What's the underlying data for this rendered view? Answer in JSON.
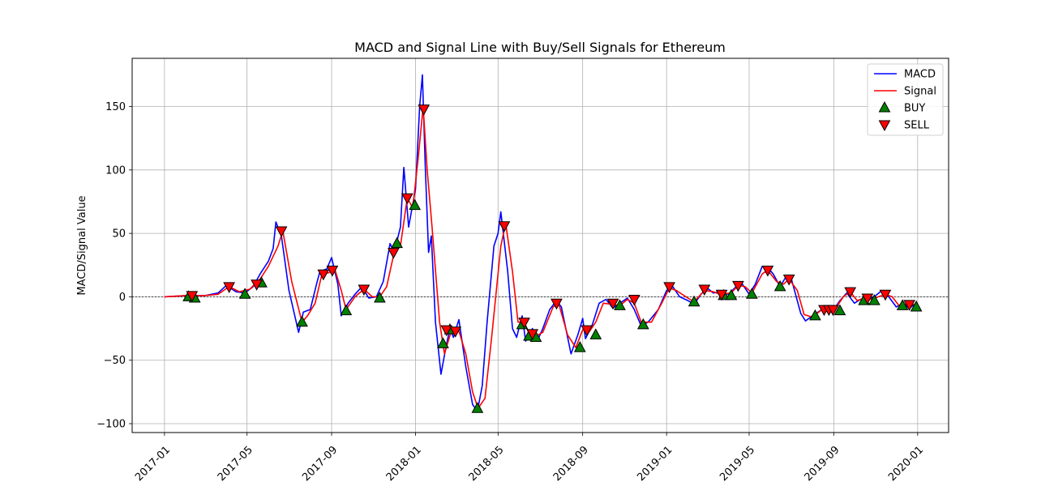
{
  "chart_data": {
    "type": "line",
    "title": "MACD and Signal Line with Buy/Sell Signals for Ethereum",
    "xlabel": "",
    "ylabel": "MACD/Signal Value",
    "xlim": [
      "2016-11-15",
      "2020-02-15"
    ],
    "ylim": [
      -107,
      188
    ],
    "x_ticks": [
      "2017-01",
      "2017-05",
      "2017-09",
      "2018-01",
      "2018-05",
      "2018-09",
      "2019-01",
      "2019-05",
      "2019-09",
      "2020-01"
    ],
    "y_ticks": [
      -100,
      -50,
      0,
      50,
      100,
      150
    ],
    "grid": true,
    "zero_line": true,
    "legend": {
      "position": "top-right",
      "entries": [
        "MACD",
        "Signal",
        "BUY",
        "SELL"
      ]
    },
    "colors": {
      "macd": "#0000ff",
      "signal": "#ff0000",
      "buy": "#008000",
      "sell": "#ff0000"
    },
    "series": [
      {
        "name": "MACD",
        "points": [
          [
            "2017-01-01",
            0
          ],
          [
            "2017-02-01",
            1
          ],
          [
            "2017-03-01",
            1
          ],
          [
            "2017-03-20",
            3
          ],
          [
            "2017-04-01",
            9
          ],
          [
            "2017-04-15",
            4
          ],
          [
            "2017-04-28",
            3
          ],
          [
            "2017-05-10",
            8
          ],
          [
            "2017-05-20",
            18
          ],
          [
            "2017-06-01",
            28
          ],
          [
            "2017-06-08",
            38
          ],
          [
            "2017-06-12",
            59
          ],
          [
            "2017-06-20",
            48
          ],
          [
            "2017-07-01",
            5
          ],
          [
            "2017-07-15",
            -28
          ],
          [
            "2017-07-22",
            -12
          ],
          [
            "2017-08-01",
            -10
          ],
          [
            "2017-08-10",
            10
          ],
          [
            "2017-08-15",
            20
          ],
          [
            "2017-08-25",
            22
          ],
          [
            "2017-09-01",
            31
          ],
          [
            "2017-09-10",
            10
          ],
          [
            "2017-09-15",
            -15
          ],
          [
            "2017-09-25",
            -5
          ],
          [
            "2017-10-05",
            2
          ],
          [
            "2017-10-15",
            8
          ],
          [
            "2017-10-25",
            -1
          ],
          [
            "2017-11-05",
            0
          ],
          [
            "2017-11-15",
            12
          ],
          [
            "2017-11-25",
            42
          ],
          [
            "2017-12-01",
            35
          ],
          [
            "2017-12-10",
            55
          ],
          [
            "2017-12-15",
            102
          ],
          [
            "2017-12-22",
            55
          ],
          [
            "2018-01-01",
            85
          ],
          [
            "2018-01-07",
            150
          ],
          [
            "2018-01-11",
            175
          ],
          [
            "2018-01-15",
            105
          ],
          [
            "2018-01-20",
            35
          ],
          [
            "2018-01-24",
            48
          ],
          [
            "2018-01-30",
            -20
          ],
          [
            "2018-02-07",
            -61
          ],
          [
            "2018-02-14",
            -40
          ],
          [
            "2018-02-20",
            -25
          ],
          [
            "2018-02-25",
            -32
          ],
          [
            "2018-03-05",
            -18
          ],
          [
            "2018-03-15",
            -55
          ],
          [
            "2018-03-25",
            -85
          ],
          [
            "2018-04-01",
            -90
          ],
          [
            "2018-04-08",
            -70
          ],
          [
            "2018-04-15",
            -20
          ],
          [
            "2018-04-25",
            40
          ],
          [
            "2018-05-01",
            50
          ],
          [
            "2018-05-05",
            67
          ],
          [
            "2018-05-15",
            20
          ],
          [
            "2018-05-22",
            -25
          ],
          [
            "2018-05-28",
            -32
          ],
          [
            "2018-06-05",
            -15
          ],
          [
            "2018-06-10",
            -35
          ],
          [
            "2018-06-20",
            -25
          ],
          [
            "2018-06-27",
            -35
          ],
          [
            "2018-07-05",
            -25
          ],
          [
            "2018-07-15",
            -10
          ],
          [
            "2018-07-25",
            -3
          ],
          [
            "2018-08-01",
            -8
          ],
          [
            "2018-08-15",
            -45
          ],
          [
            "2018-08-25",
            -30
          ],
          [
            "2018-09-01",
            -17
          ],
          [
            "2018-09-05",
            -33
          ],
          [
            "2018-09-15",
            -22
          ],
          [
            "2018-09-25",
            -5
          ],
          [
            "2018-10-05",
            -2
          ],
          [
            "2018-10-15",
            -9
          ],
          [
            "2018-10-25",
            -5
          ],
          [
            "2018-11-05",
            -1
          ],
          [
            "2018-11-15",
            -10
          ],
          [
            "2018-11-25",
            -23
          ],
          [
            "2018-12-05",
            -20
          ],
          [
            "2018-12-20",
            -10
          ],
          [
            "2019-01-01",
            5
          ],
          [
            "2019-01-10",
            8
          ],
          [
            "2019-01-20",
            0
          ],
          [
            "2019-02-01",
            -3
          ],
          [
            "2019-02-10",
            -6
          ],
          [
            "2019-02-20",
            2
          ],
          [
            "2019-03-01",
            7
          ],
          [
            "2019-03-10",
            3
          ],
          [
            "2019-03-20",
            4
          ],
          [
            "2019-04-01",
            2
          ],
          [
            "2019-04-10",
            7
          ],
          [
            "2019-04-20",
            11
          ],
          [
            "2019-05-01",
            2
          ],
          [
            "2019-05-10",
            10
          ],
          [
            "2019-05-20",
            24
          ],
          [
            "2019-05-28",
            23
          ],
          [
            "2019-06-05",
            18
          ],
          [
            "2019-06-15",
            8
          ],
          [
            "2019-06-25",
            17
          ],
          [
            "2019-07-01",
            15
          ],
          [
            "2019-07-15",
            -13
          ],
          [
            "2019-07-22",
            -19
          ],
          [
            "2019-08-01",
            -15
          ],
          [
            "2019-08-15",
            -10
          ],
          [
            "2019-08-25",
            -11
          ],
          [
            "2019-09-01",
            -10
          ],
          [
            "2019-09-10",
            -3
          ],
          [
            "2019-09-20",
            3
          ],
          [
            "2019-10-01",
            -5
          ],
          [
            "2019-10-10",
            -2
          ],
          [
            "2019-10-20",
            -3
          ],
          [
            "2019-11-01",
            1
          ],
          [
            "2019-11-10",
            5
          ],
          [
            "2019-11-20",
            0
          ],
          [
            "2019-12-01",
            -8
          ],
          [
            "2019-12-10",
            -5
          ],
          [
            "2019-12-20",
            -9
          ],
          [
            "2019-12-30",
            -5
          ]
        ]
      },
      {
        "name": "Signal",
        "points": [
          [
            "2017-01-01",
            0
          ],
          [
            "2017-02-01",
            1
          ],
          [
            "2017-03-01",
            1
          ],
          [
            "2017-03-20",
            2
          ],
          [
            "2017-04-05",
            8
          ],
          [
            "2017-04-20",
            4
          ],
          [
            "2017-05-05",
            6
          ],
          [
            "2017-05-20",
            14
          ],
          [
            "2017-06-01",
            24
          ],
          [
            "2017-06-15",
            40
          ],
          [
            "2017-06-22",
            52
          ],
          [
            "2017-07-05",
            12
          ],
          [
            "2017-07-20",
            -20
          ],
          [
            "2017-07-28",
            -15
          ],
          [
            "2017-08-08",
            -5
          ],
          [
            "2017-08-18",
            18
          ],
          [
            "2017-08-28",
            19
          ],
          [
            "2017-09-05",
            23
          ],
          [
            "2017-09-15",
            5
          ],
          [
            "2017-09-22",
            -10
          ],
          [
            "2017-10-05",
            0
          ],
          [
            "2017-10-18",
            6
          ],
          [
            "2017-10-30",
            0
          ],
          [
            "2017-11-10",
            0
          ],
          [
            "2017-11-20",
            8
          ],
          [
            "2017-12-01",
            35
          ],
          [
            "2017-12-10",
            40
          ],
          [
            "2017-12-20",
            78
          ],
          [
            "2017-12-28",
            70
          ],
          [
            "2018-01-05",
            110
          ],
          [
            "2018-01-12",
            150
          ],
          [
            "2018-01-18",
            100
          ],
          [
            "2018-01-25",
            55
          ],
          [
            "2018-02-05",
            -20
          ],
          [
            "2018-02-12",
            -45
          ],
          [
            "2018-02-22",
            -27
          ],
          [
            "2018-03-05",
            -27
          ],
          [
            "2018-03-15",
            -45
          ],
          [
            "2018-03-25",
            -75
          ],
          [
            "2018-04-02",
            -88
          ],
          [
            "2018-04-12",
            -80
          ],
          [
            "2018-04-22",
            -30
          ],
          [
            "2018-05-05",
            40
          ],
          [
            "2018-05-12",
            58
          ],
          [
            "2018-05-22",
            20
          ],
          [
            "2018-05-30",
            -20
          ],
          [
            "2018-06-08",
            -20
          ],
          [
            "2018-06-15",
            -29
          ],
          [
            "2018-06-25",
            -31
          ],
          [
            "2018-07-05",
            -28
          ],
          [
            "2018-07-20",
            -8
          ],
          [
            "2018-07-28",
            -5
          ],
          [
            "2018-08-10",
            -30
          ],
          [
            "2018-08-22",
            -40
          ],
          [
            "2018-09-01",
            -26
          ],
          [
            "2018-09-10",
            -28
          ],
          [
            "2018-09-20",
            -20
          ],
          [
            "2018-10-01",
            -5
          ],
          [
            "2018-10-15",
            -6
          ],
          [
            "2018-10-25",
            -7
          ],
          [
            "2018-11-05",
            -2
          ],
          [
            "2018-11-15",
            -5
          ],
          [
            "2018-11-25",
            -20
          ],
          [
            "2018-12-10",
            -20
          ],
          [
            "2018-12-25",
            -5
          ],
          [
            "2019-01-05",
            7
          ],
          [
            "2019-01-15",
            5
          ],
          [
            "2019-02-01",
            -1
          ],
          [
            "2019-02-10",
            -4
          ],
          [
            "2019-02-25",
            5
          ],
          [
            "2019-03-10",
            4
          ],
          [
            "2019-03-20",
            2
          ],
          [
            "2019-04-05",
            3
          ],
          [
            "2019-04-15",
            9
          ],
          [
            "2019-04-25",
            8
          ],
          [
            "2019-05-05",
            3
          ],
          [
            "2019-05-20",
            18
          ],
          [
            "2019-05-28",
            21
          ],
          [
            "2019-06-10",
            12
          ],
          [
            "2019-06-20",
            10
          ],
          [
            "2019-06-28",
            14
          ],
          [
            "2019-07-10",
            5
          ],
          [
            "2019-07-20",
            -14
          ],
          [
            "2019-08-01",
            -16
          ],
          [
            "2019-08-15",
            -10
          ],
          [
            "2019-08-28",
            -10
          ],
          [
            "2019-09-05",
            -8
          ],
          [
            "2019-09-15",
            0
          ],
          [
            "2019-09-25",
            4
          ],
          [
            "2019-10-05",
            -3
          ],
          [
            "2019-10-15",
            -1
          ],
          [
            "2019-10-25",
            -2
          ],
          [
            "2019-11-05",
            0
          ],
          [
            "2019-11-15",
            2
          ],
          [
            "2019-11-25",
            0
          ],
          [
            "2019-12-05",
            -7
          ],
          [
            "2019-12-15",
            -6
          ],
          [
            "2019-12-30",
            -6
          ]
        ]
      }
    ],
    "buy_signals": [
      [
        "2017-02-05",
        0
      ],
      [
        "2017-02-14",
        -1
      ],
      [
        "2017-04-28",
        2
      ],
      [
        "2017-05-22",
        11
      ],
      [
        "2017-07-20",
        -20
      ],
      [
        "2017-09-22",
        -11
      ],
      [
        "2017-11-10",
        -1
      ],
      [
        "2017-12-05",
        42
      ],
      [
        "2017-12-31",
        72
      ],
      [
        "2018-02-10",
        -37
      ],
      [
        "2018-02-20",
        -26
      ],
      [
        "2018-04-01",
        -88
      ],
      [
        "2018-06-05",
        -22
      ],
      [
        "2018-06-15",
        -31
      ],
      [
        "2018-06-25",
        -32
      ],
      [
        "2018-08-28",
        -40
      ],
      [
        "2018-09-20",
        -30
      ],
      [
        "2018-10-25",
        -7
      ],
      [
        "2018-11-28",
        -22
      ],
      [
        "2019-02-10",
        -4
      ],
      [
        "2019-03-25",
        1
      ],
      [
        "2019-04-05",
        1
      ],
      [
        "2019-05-05",
        2
      ],
      [
        "2019-06-15",
        8
      ],
      [
        "2019-08-05",
        -15
      ],
      [
        "2019-09-10",
        -11
      ],
      [
        "2019-10-15",
        -3
      ],
      [
        "2019-10-30",
        -3
      ],
      [
        "2019-12-10",
        -7
      ],
      [
        "2019-12-30",
        -8
      ]
    ],
    "sell_signals": [
      [
        "2017-02-10",
        1
      ],
      [
        "2017-04-05",
        8
      ],
      [
        "2017-05-15",
        10
      ],
      [
        "2017-06-20",
        52
      ],
      [
        "2017-08-20",
        18
      ],
      [
        "2017-09-02",
        21
      ],
      [
        "2017-10-18",
        6
      ],
      [
        "2017-11-30",
        35
      ],
      [
        "2017-12-20",
        78
      ],
      [
        "2018-01-13",
        148
      ],
      [
        "2018-02-15",
        -26
      ],
      [
        "2018-02-28",
        -27
      ],
      [
        "2018-05-10",
        56
      ],
      [
        "2018-06-08",
        -20
      ],
      [
        "2018-06-20",
        -29
      ],
      [
        "2018-07-25",
        -5
      ],
      [
        "2018-09-07",
        -26
      ],
      [
        "2018-10-15",
        -5
      ],
      [
        "2018-11-15",
        -2
      ],
      [
        "2019-01-05",
        8
      ],
      [
        "2019-02-25",
        6
      ],
      [
        "2019-03-22",
        2
      ],
      [
        "2019-04-15",
        9
      ],
      [
        "2019-05-28",
        21
      ],
      [
        "2019-06-28",
        14
      ],
      [
        "2019-08-18",
        -10
      ],
      [
        "2019-08-25",
        -10
      ],
      [
        "2019-08-31",
        -10
      ],
      [
        "2019-09-25",
        4
      ],
      [
        "2019-10-20",
        -1
      ],
      [
        "2019-11-15",
        2
      ],
      [
        "2019-12-20",
        -6
      ]
    ]
  }
}
